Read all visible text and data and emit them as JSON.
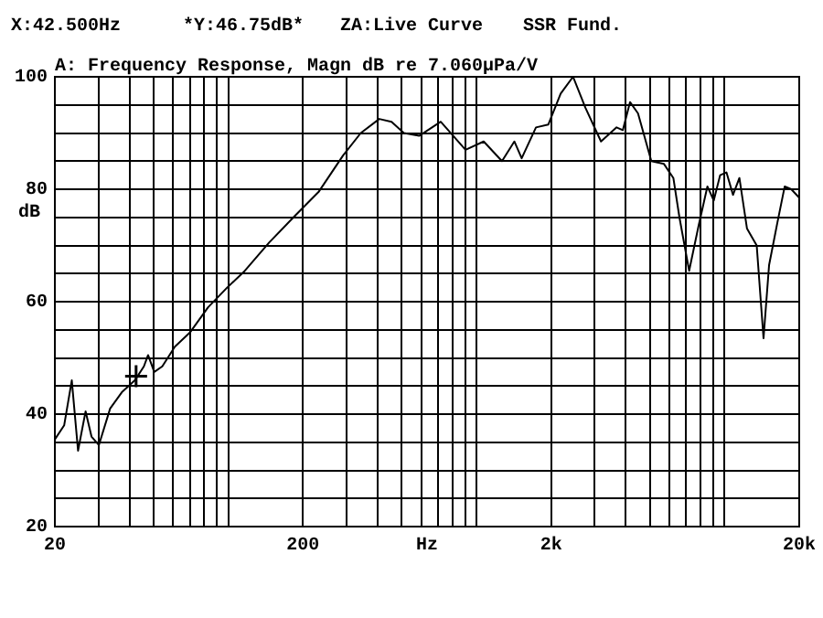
{
  "chart_data": {
    "type": "line",
    "title": "A: Frequency Response, Magn dB re 7.060µPa/V",
    "xlabel": "Hz",
    "ylabel": "dB",
    "annotations": [
      "X:42.500Hz",
      "*Y:46.75dB*",
      "ZA:Live Curve",
      "SSR Fund."
    ],
    "log": "x",
    "grid": true,
    "xlim": [
      20,
      20000
    ],
    "xticks": [
      20,
      {
        "value": 30,
        "label": null
      },
      {
        "value": 40,
        "label": null
      },
      {
        "value": 50,
        "label": null
      },
      {
        "value": 60,
        "label": null
      },
      {
        "value": 70,
        "label": null
      },
      {
        "value": 80,
        "label": null
      },
      {
        "value": 90,
        "label": null
      },
      {
        "value": 100,
        "label": null
      },
      200,
      {
        "value": 300,
        "label": null
      },
      {
        "value": 400,
        "label": null
      },
      {
        "value": 500,
        "label": null
      },
      {
        "value": 600,
        "label": null
      },
      {
        "value": 700,
        "label": null
      },
      {
        "value": 800,
        "label": null
      },
      {
        "value": 900,
        "label": null
      },
      {
        "value": 1000,
        "label": null
      },
      {
        "value": 2000,
        "label": "2k"
      },
      {
        "value": 3000,
        "label": null
      },
      {
        "value": 4000,
        "label": null
      },
      {
        "value": 5000,
        "label": null
      },
      {
        "value": 6000,
        "label": null
      },
      {
        "value": 7000,
        "label": null
      },
      {
        "value": 8000,
        "label": null
      },
      {
        "value": 9000,
        "label": null
      },
      {
        "value": 10000,
        "label": null
      },
      {
        "value": 20000,
        "label": "20k"
      }
    ],
    "ylim": [
      20,
      100
    ],
    "yticks": [
      20,
      {
        "value": 25,
        "label": null
      },
      {
        "value": 30,
        "label": null
      },
      {
        "value": 35,
        "label": null
      },
      40,
      {
        "value": 45,
        "label": null
      },
      {
        "value": 50,
        "label": null
      },
      {
        "value": 55,
        "label": null
      },
      60,
      {
        "value": 65,
        "label": null
      },
      {
        "value": 70,
        "label": null
      },
      {
        "value": 75,
        "label": null
      },
      80,
      {
        "value": 85,
        "label": null
      },
      {
        "value": 90,
        "label": null
      },
      {
        "value": 95,
        "label": null
      },
      100
    ],
    "series": [
      {
        "type": "line",
        "color": "#000000",
        "marker": "none",
        "x": [
          20,
          21.8,
          23.4,
          24.8,
          26.6,
          28.1,
          30.1,
          33.4,
          37.4,
          42,
          45.7,
          47.5,
          50.3,
          54.2,
          60.9,
          70,
          82.9,
          98.9,
          116.6,
          146,
          183,
          231,
          290,
          342,
          406,
          455,
          510,
          588,
          718,
          904,
          1070,
          1268,
          1422,
          1522,
          1738,
          1948,
          2186,
          2452,
          2750,
          3178,
          3672,
          3890,
          4160,
          4480,
          5070,
          5700,
          6220,
          6580,
          7200,
          7860,
          8530,
          9050,
          9600,
          10180,
          10820,
          11480,
          12320,
          13480,
          14360,
          15120,
          16320,
          17480,
          18580,
          20000
        ],
        "values": [
          35.5,
          38,
          46,
          33.5,
          40.5,
          36,
          34.5,
          41,
          44,
          46,
          48.5,
          50.5,
          47.5,
          48.5,
          52,
          54.5,
          59,
          62.5,
          65.5,
          70.5,
          75,
          79.5,
          86,
          90,
          92.5,
          92,
          90,
          89.5,
          92,
          87,
          88.5,
          85,
          88.5,
          85.5,
          91,
          91.5,
          97,
          100,
          94.5,
          88.5,
          91,
          90.5,
          95.5,
          93.5,
          85,
          84.5,
          82,
          75,
          65.5,
          73.5,
          80.5,
          78,
          82.5,
          83,
          79,
          82,
          73,
          70,
          53.5,
          66.5,
          74,
          80.5,
          80,
          78.5
        ]
      },
      {
        "type": "scatter",
        "color": "#000000",
        "marker": "cross",
        "x": [
          42.5
        ],
        "values": [
          46.75
        ]
      }
    ]
  }
}
